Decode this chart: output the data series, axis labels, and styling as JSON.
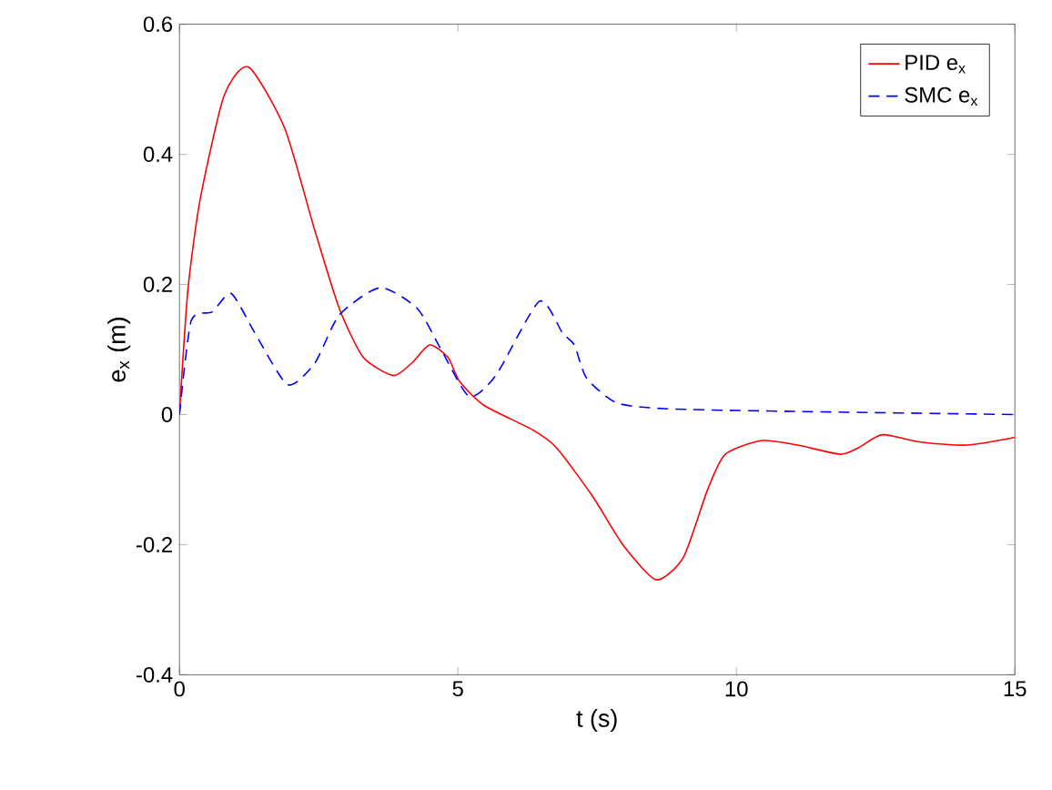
{
  "chart_data": {
    "type": "line",
    "xlabel": "t (s)",
    "ylabel": "e$_{x}$ (m)",
    "xlim": [
      0,
      15
    ],
    "ylim": [
      -0.4,
      0.6
    ],
    "xticks": [
      0,
      5,
      10,
      15
    ],
    "yticks": [
      -0.4,
      -0.2,
      0,
      0.2,
      0.4,
      0.6
    ],
    "grid": false,
    "legend": "top right",
    "series": [
      {
        "name": "PID e$_{x}$",
        "color": "#ff0000",
        "line_style": "solid",
        "x": [
          0,
          0.15,
          0.37,
          0.8,
          1.24,
          1.89,
          2.43,
          2.87,
          3.3,
          3.84,
          4.17,
          4.49,
          4.82,
          5.03,
          5.47,
          6.33,
          6.77,
          7.42,
          7.96,
          8.56,
          9.05,
          9.48,
          9.8,
          10.46,
          11.1,
          11.86,
          12.19,
          12.62,
          13.28,
          14.14,
          15
        ],
        "values": [
          0,
          0.19,
          0.33,
          0.49,
          0.534,
          0.44,
          0.283,
          0.163,
          0.088,
          0.06,
          0.079,
          0.107,
          0.088,
          0.051,
          0.014,
          -0.023,
          -0.051,
          -0.126,
          -0.2,
          -0.254,
          -0.219,
          -0.116,
          -0.061,
          -0.04,
          -0.047,
          -0.061,
          -0.051,
          -0.031,
          -0.042,
          -0.047,
          -0.035
        ]
      },
      {
        "name": "SMC e$_{x}$",
        "color": "#0000ff",
        "line_style": "dashed",
        "x": [
          0,
          0.21,
          0.59,
          0.93,
          1.35,
          1.94,
          2.43,
          2.87,
          3.6,
          4.27,
          4.71,
          5.2,
          5.68,
          6.46,
          6.88,
          7.09,
          7.31,
          7.85,
          8.72,
          10.9,
          15
        ],
        "values": [
          0,
          0.144,
          0.158,
          0.186,
          0.126,
          0.046,
          0.079,
          0.153,
          0.195,
          0.163,
          0.098,
          0.028,
          0.06,
          0.174,
          0.125,
          0.107,
          0.056,
          0.018,
          0.009,
          0.005,
          0.0
        ]
      }
    ]
  }
}
